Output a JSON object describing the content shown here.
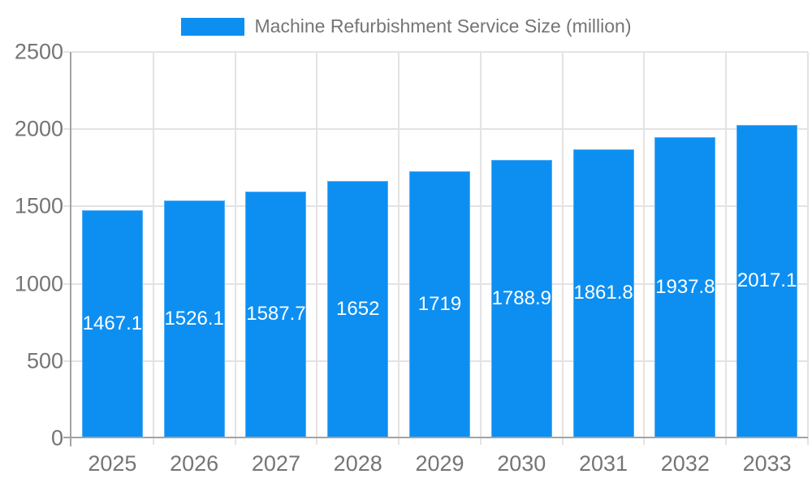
{
  "chart_data": {
    "type": "bar",
    "title": "Machine Refurbishment Service Size (million)",
    "categories": [
      "2025",
      "2026",
      "2027",
      "2028",
      "2029",
      "2030",
      "2031",
      "2032",
      "2033"
    ],
    "values": [
      1467.1,
      1526.1,
      1587.7,
      1652,
      1719,
      1788.9,
      1861.8,
      1937.8,
      2017.1
    ],
    "value_labels": [
      "1467.1",
      "1526.1",
      "1587.7",
      "1652",
      "1719",
      "1788.9",
      "1861.8",
      "1937.8",
      "2017.1"
    ],
    "xlabel": "",
    "ylabel": "",
    "ylim": [
      0,
      2500
    ],
    "yticks": [
      0,
      500,
      1000,
      1500,
      2000,
      2500
    ],
    "grid": true,
    "legend_position": "top-center",
    "data_labels_position": "inside-center",
    "colors": {
      "bar": "#0d8ff2",
      "bar_border": "#55aef7",
      "grid": "#e3e3e3",
      "axis": "#a3a3a3",
      "label_text": "#757575",
      "data_label": "#ffffff",
      "background": "#ffffff"
    }
  }
}
